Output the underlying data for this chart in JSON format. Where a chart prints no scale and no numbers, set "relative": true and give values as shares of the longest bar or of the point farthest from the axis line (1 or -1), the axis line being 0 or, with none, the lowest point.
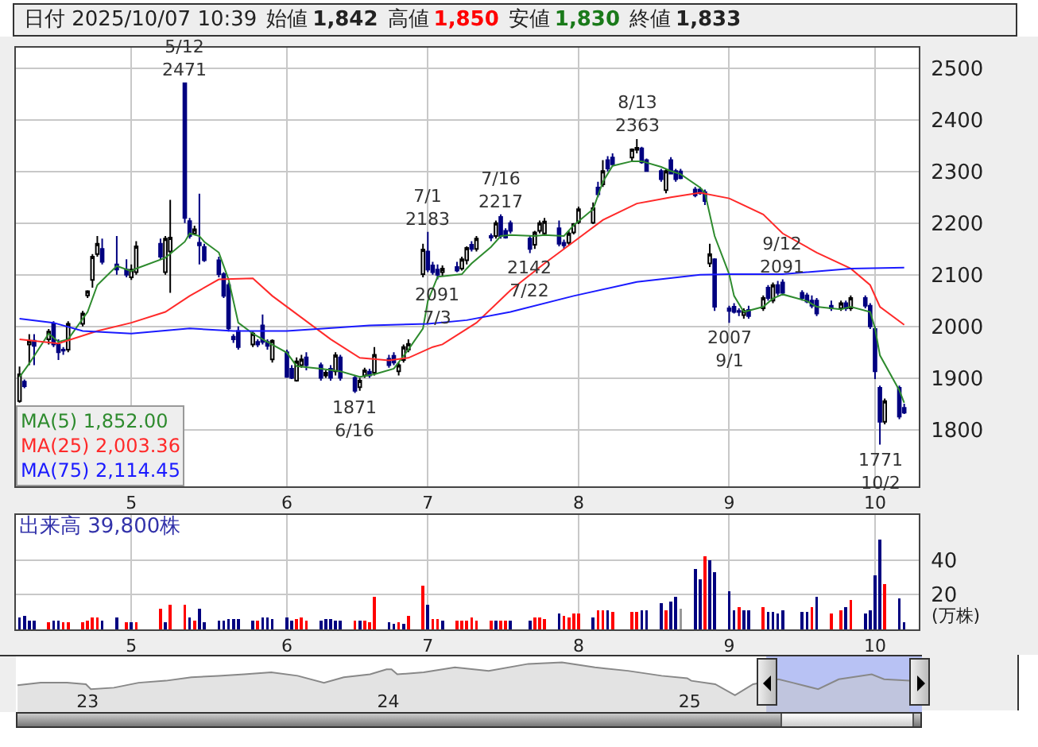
{
  "chart_data": [
    {
      "type": "candlestick",
      "title": "日付 2025/10/07 10:39",
      "x": [
        "2025-04-08",
        "2025-04-09",
        "2025-04-10",
        "2025-04-11",
        "2025-04-14",
        "2025-04-15",
        "2025-04-16",
        "2025-04-17",
        "2025-04-18",
        "2025-04-21",
        "2025-04-22",
        "2025-04-23",
        "2025-04-24",
        "2025-04-25",
        "2025-04-28",
        "2025-04-30",
        "2025-05-01",
        "2025-05-02",
        "2025-05-07",
        "2025-05-08",
        "2025-05-09",
        "2025-05-12",
        "2025-05-13",
        "2025-05-14",
        "2025-05-15",
        "2025-05-16",
        "2025-05-19",
        "2025-05-20",
        "2025-05-21",
        "2025-05-22",
        "2025-05-23",
        "2025-05-26",
        "2025-05-27",
        "2025-05-28",
        "2025-05-29",
        "2025-05-30",
        "2025-06-02",
        "2025-06-03",
        "2025-06-04",
        "2025-06-05",
        "2025-06-06",
        "2025-06-09",
        "2025-06-10",
        "2025-06-11",
        "2025-06-12",
        "2025-06-13",
        "2025-06-16",
        "2025-06-17",
        "2025-06-18",
        "2025-06-19",
        "2025-06-20",
        "2025-06-23",
        "2025-06-24",
        "2025-06-25",
        "2025-06-26",
        "2025-06-27",
        "2025-06-30",
        "2025-07-01",
        "2025-07-02",
        "2025-07-03",
        "2025-07-04",
        "2025-07-07",
        "2025-07-08",
        "2025-07-09",
        "2025-07-10",
        "2025-07-11",
        "2025-07-14",
        "2025-07-15",
        "2025-07-16",
        "2025-07-17",
        "2025-07-18",
        "2025-07-22",
        "2025-07-23",
        "2025-07-24",
        "2025-07-25",
        "2025-07-28",
        "2025-07-29",
        "2025-07-30",
        "2025-07-31",
        "2025-08-01",
        "2025-08-04",
        "2025-08-05",
        "2025-08-06",
        "2025-08-07",
        "2025-08-08",
        "2025-08-12",
        "2025-08-13",
        "2025-08-14",
        "2025-08-15",
        "2025-08-18",
        "2025-08-19",
        "2025-08-20",
        "2025-08-21",
        "2025-08-22",
        "2025-08-25",
        "2025-08-26",
        "2025-08-27",
        "2025-08-28",
        "2025-08-29",
        "2025-09-01",
        "2025-09-02",
        "2025-09-03",
        "2025-09-04",
        "2025-09-05",
        "2025-09-08",
        "2025-09-09",
        "2025-09-10",
        "2025-09-11",
        "2025-09-12",
        "2025-09-16",
        "2025-09-17",
        "2025-09-18",
        "2025-09-19",
        "2025-09-22",
        "2025-09-24",
        "2025-09-25",
        "2025-09-26",
        "2025-09-29",
        "2025-09-30",
        "2025-10-01",
        "2025-10-02",
        "2025-10-03",
        "2025-10-06",
        "2025-10-07"
      ],
      "ohlc": [
        [
          1855,
          1922,
          1852,
          1907
        ],
        [
          1893,
          1897,
          1880,
          1884
        ],
        [
          1965,
          1985,
          1925,
          1972
        ],
        [
          1972,
          1985,
          1925,
          1962
        ],
        [
          1975,
          1995,
          1965,
          1990
        ],
        [
          2005,
          2010,
          1960,
          1965
        ],
        [
          1965,
          1975,
          1935,
          1950
        ],
        [
          1955,
          1960,
          1945,
          1953
        ],
        [
          1955,
          2010,
          1950,
          2005
        ],
        [
          2005,
          2030,
          2000,
          2025
        ],
        [
          2060,
          2070,
          2055,
          2068
        ],
        [
          2090,
          2140,
          2075,
          2135
        ],
        [
          2140,
          2175,
          2135,
          2160
        ],
        [
          2150,
          2170,
          2120,
          2125
        ],
        [
          2120,
          2175,
          2100,
          2110
        ],
        [
          2110,
          2130,
          2095,
          2100
        ],
        [
          2095,
          2120,
          2090,
          2110
        ],
        [
          2105,
          2165,
          2100,
          2155
        ],
        [
          2160,
          2170,
          2130,
          2135
        ],
        [
          2105,
          2175,
          2100,
          2170
        ],
        [
          2145,
          2245,
          2065,
          2172
        ],
        [
          2471,
          2471,
          2200,
          2210
        ],
        [
          2204,
          2210,
          2170,
          2175
        ],
        [
          2180,
          2195,
          2178,
          2188
        ],
        [
          2162,
          2257,
          2120,
          2157
        ],
        [
          2154,
          2160,
          2125,
          2128
        ],
        [
          2128,
          2135,
          2095,
          2101
        ],
        [
          2101,
          2105,
          2055,
          2059
        ],
        [
          2080,
          2085,
          1990,
          1996
        ],
        [
          1980,
          1985,
          1968,
          1975
        ],
        [
          1991,
          2000,
          1955,
          1960
        ],
        [
          1965,
          1990,
          1960,
          1986
        ],
        [
          1970,
          1975,
          1960,
          1965
        ],
        [
          2002,
          2023,
          1965,
          1970
        ],
        [
          1970,
          1975,
          1955,
          1962
        ],
        [
          1936,
          1975,
          1930,
          1972
        ],
        [
          1950,
          1955,
          1900,
          1902
        ],
        [
          1918,
          1925,
          1898,
          1900
        ],
        [
          1895,
          1940,
          1893,
          1932
        ],
        [
          1925,
          1945,
          1920,
          1936
        ],
        [
          1940,
          1950,
          1915,
          1925
        ],
        [
          1925,
          1930,
          1895,
          1900
        ],
        [
          1905,
          1915,
          1900,
          1910
        ],
        [
          1918,
          1925,
          1895,
          1900
        ],
        [
          1913,
          1950,
          1905,
          1944
        ],
        [
          1940,
          1945,
          1895,
          1900
        ],
        [
          1900,
          1905,
          1871,
          1875
        ],
        [
          1882,
          1900,
          1875,
          1895
        ],
        [
          1905,
          1920,
          1900,
          1915
        ],
        [
          1912,
          1918,
          1900,
          1905
        ],
        [
          1910,
          1960,
          1905,
          1945
        ],
        [
          1937,
          1945,
          1920,
          1925
        ],
        [
          1943,
          1950,
          1925,
          1930
        ],
        [
          1913,
          1930,
          1905,
          1925
        ],
        [
          1935,
          1965,
          1930,
          1960
        ],
        [
          1955,
          1975,
          1950,
          1966
        ],
        [
          2101,
          2160,
          2095,
          2149
        ],
        [
          2145,
          2183,
          2105,
          2110
        ],
        [
          2118,
          2125,
          2100,
          2105
        ],
        [
          2110,
          2120,
          2091,
          2100
        ],
        [
          2105,
          2118,
          2098,
          2112
        ],
        [
          2115,
          2125,
          2105,
          2108
        ],
        [
          2112,
          2135,
          2108,
          2130
        ],
        [
          2128,
          2155,
          2120,
          2152
        ],
        [
          2158,
          2165,
          2145,
          2150
        ],
        [
          2150,
          2175,
          2145,
          2170
        ],
        [
          2175,
          2180,
          2165,
          2172
        ],
        [
          2175,
          2205,
          2170,
          2200
        ],
        [
          2212,
          2217,
          2170,
          2175
        ],
        [
          2185,
          2190,
          2170,
          2172
        ],
        [
          2200,
          2205,
          2180,
          2185
        ],
        [
          2170,
          2175,
          2142,
          2150
        ],
        [
          2158,
          2185,
          2150,
          2182
        ],
        [
          2185,
          2205,
          2180,
          2200
        ],
        [
          2180,
          2210,
          2175,
          2203
        ],
        [
          2190,
          2205,
          2155,
          2160
        ],
        [
          2162,
          2168,
          2150,
          2157
        ],
        [
          2162,
          2185,
          2158,
          2180
        ],
        [
          2182,
          2200,
          2178,
          2198
        ],
        [
          2202,
          2232,
          2198,
          2227
        ],
        [
          2201,
          2240,
          2198,
          2229
        ],
        [
          2269,
          2280,
          2250,
          2256
        ],
        [
          2275,
          2322,
          2270,
          2301
        ],
        [
          2322,
          2330,
          2300,
          2306
        ],
        [
          2327,
          2335,
          2310,
          2314
        ],
        [
          2327,
          2345,
          2320,
          2343
        ],
        [
          2342,
          2363,
          2335,
          2346
        ],
        [
          2345,
          2348,
          2315,
          2318
        ],
        [
          2322,
          2325,
          2300,
          2301
        ],
        [
          2301,
          2305,
          2280,
          2285
        ],
        [
          2264,
          2305,
          2258,
          2301
        ],
        [
          2322,
          2328,
          2295,
          2296
        ],
        [
          2301,
          2305,
          2280,
          2285
        ],
        [
          2300,
          2305,
          2285,
          2287
        ],
        [
          2265,
          2270,
          2250,
          2254
        ],
        [
          2265,
          2270,
          2255,
          2258
        ],
        [
          2260,
          2265,
          2235,
          2243
        ],
        [
          2122,
          2160,
          2115,
          2140
        ],
        [
          2130,
          2132,
          2030,
          2038
        ],
        [
          2035,
          2040,
          2007,
          2030
        ],
        [
          2038,
          2045,
          2025,
          2028
        ],
        [
          2030,
          2035,
          2020,
          2028
        ],
        [
          2022,
          2035,
          2015,
          2030
        ],
        [
          2032,
          2040,
          2015,
          2020
        ],
        [
          2035,
          2060,
          2030,
          2055
        ],
        [
          2075,
          2080,
          2050,
          2055
        ],
        [
          2050,
          2085,
          2045,
          2080
        ],
        [
          2080,
          2088,
          2060,
          2065
        ],
        [
          2085,
          2091,
          2060,
          2065
        ],
        [
          2065,
          2070,
          2050,
          2055
        ],
        [
          2060,
          2065,
          2045,
          2048
        ],
        [
          2050,
          2060,
          2035,
          2040
        ],
        [
          2050,
          2055,
          2020,
          2025
        ],
        [
          2040,
          2050,
          2030,
          2035
        ],
        [
          2035,
          2050,
          2030,
          2045
        ],
        [
          2045,
          2050,
          2030,
          2035
        ],
        [
          2035,
          2060,
          2030,
          2055
        ],
        [
          2055,
          2060,
          2035,
          2040
        ],
        [
          2040,
          2045,
          1995,
          2000
        ],
        [
          1995,
          2000,
          1898,
          1913
        ],
        [
          1881,
          1885,
          1771,
          1815
        ],
        [
          1815,
          1860,
          1810,
          1855
        ],
        [
          1881,
          1885,
          1820,
          1825
        ],
        [
          1842,
          1850,
          1830,
          1833
        ]
      ],
      "series": [
        {
          "type": "line",
          "name": "MA(5) 1,852.00",
          "color": "#2e8b2e",
          "x": [
            "2025-04-08",
            "2025-04-10",
            "2025-04-14",
            "2025-04-16",
            "2025-04-18",
            "2025-04-22",
            "2025-04-24",
            "2025-04-28",
            "2025-05-01",
            "2025-05-02",
            "2025-05-08",
            "2025-05-12",
            "2025-05-13",
            "2025-05-15",
            "2025-05-16",
            "2025-05-19",
            "2025-05-21",
            "2025-05-23",
            "2025-05-26",
            "2025-05-28",
            "2025-06-02",
            "2025-06-04",
            "2025-06-09",
            "2025-06-13",
            "2025-06-17",
            "2025-06-20",
            "2025-06-24",
            "2025-06-27",
            "2025-06-30",
            "2025-07-01",
            "2025-07-03",
            "2025-07-08",
            "2025-07-09",
            "2025-07-10",
            "2025-07-14",
            "2025-07-16",
            "2025-07-18",
            "2025-07-23",
            "2025-07-25",
            "2025-07-29",
            "2025-07-31",
            "2025-08-04",
            "2025-08-06",
            "2025-08-08",
            "2025-08-12",
            "2025-08-14",
            "2025-08-18",
            "2025-08-20",
            "2025-08-22",
            "2025-08-26",
            "2025-08-27",
            "2025-08-29",
            "2025-09-01",
            "2025-09-02",
            "2025-09-04",
            "2025-09-08",
            "2025-09-10",
            "2025-09-12",
            "2025-09-17",
            "2025-09-19",
            "2025-09-24",
            "2025-09-26",
            "2025-09-30",
            "2025-10-01",
            "2025-10-02",
            "2025-10-06",
            "2025-10-07"
          ],
          "values": [
            1902,
            1928,
            1986,
            1970,
            1975,
            2028,
            2080,
            2117,
            2107,
            2112,
            2133,
            2164,
            2180,
            2175,
            2164,
            2143,
            2091,
            2007,
            1986,
            1975,
            1949,
            1923,
            1918,
            1913,
            1902,
            1907,
            1918,
            1955,
            1996,
            2049,
            2096,
            2101,
            2112,
            2122,
            2154,
            2175,
            2177,
            2175,
            2177,
            2175,
            2196,
            2227,
            2280,
            2311,
            2320,
            2320,
            2309,
            2301,
            2295,
            2269,
            2259,
            2175,
            2101,
            2059,
            2028,
            2038,
            2054,
            2062,
            2049,
            2038,
            2033,
            2038,
            2028,
            1996,
            1944,
            1876,
            1852
          ]
        },
        {
          "type": "line",
          "name": "MA(25) 2,003.36",
          "color": "#ff2a2a",
          "x": [
            "2025-04-08",
            "2025-04-16",
            "2025-04-24",
            "2025-05-01",
            "2025-05-08",
            "2025-05-13",
            "2025-05-19",
            "2025-05-26",
            "2025-05-30",
            "2025-06-05",
            "2025-06-11",
            "2025-06-17",
            "2025-06-23",
            "2025-06-27",
            "2025-07-02",
            "2025-07-04",
            "2025-07-11",
            "2025-07-18",
            "2025-07-25",
            "2025-07-31",
            "2025-08-06",
            "2025-08-13",
            "2025-08-20",
            "2025-08-26",
            "2025-09-01",
            "2025-09-08",
            "2025-09-12",
            "2025-09-19",
            "2025-09-26",
            "2025-09-30",
            "2025-10-02",
            "2025-10-07"
          ],
          "values": [
            1975,
            1967,
            1991,
            2007,
            2028,
            2059,
            2091,
            2093,
            2059,
            2017,
            1975,
            1939,
            1934,
            1939,
            1960,
            1965,
            2007,
            2070,
            2122,
            2164,
            2206,
            2238,
            2250,
            2259,
            2248,
            2217,
            2180,
            2143,
            2112,
            2080,
            2038,
            2003
          ]
        },
        {
          "type": "line",
          "name": "MA(75) 2,114.45",
          "color": "#1a1aff",
          "x": [
            "2025-04-08",
            "2025-04-15",
            "2025-04-21",
            "2025-05-01",
            "2025-05-13",
            "2025-05-22",
            "2025-06-02",
            "2025-06-10",
            "2025-06-19",
            "2025-07-01",
            "2025-07-09",
            "2025-07-18",
            "2025-07-31",
            "2025-08-13",
            "2025-08-26",
            "2025-09-01",
            "2025-09-12",
            "2025-09-26",
            "2025-10-07"
          ],
          "values": [
            2015,
            2007,
            1991,
            1986,
            1996,
            1991,
            1991,
            1996,
            2002,
            2005,
            2012,
            2028,
            2059,
            2086,
            2100,
            2101,
            2101,
            2112,
            2114
          ]
        }
      ],
      "annotations": [
        "始値 1,842",
        "高値 1,850",
        "安値 1,830",
        "終値 1,833",
        {
          "text": "5/12\n2471",
          "x": "2025-05-12",
          "y": 2471
        },
        {
          "text": "1871\n6/16",
          "x": "2025-06-16",
          "y": 1871
        },
        {
          "text": "7/1\n2183",
          "x": "2025-07-01",
          "y": 2183
        },
        {
          "text": "2091\n7/3",
          "x": "2025-07-03",
          "y": 2091
        },
        {
          "text": "7/16\n2217",
          "x": "2025-07-16",
          "y": 2217
        },
        {
          "text": "2142\n7/22",
          "x": "2025-07-22",
          "y": 2142
        },
        {
          "text": "8/13\n2363",
          "x": "2025-08-13",
          "y": 2363
        },
        {
          "text": "2007\n9/1",
          "x": "2025-09-01",
          "y": 2007
        },
        {
          "text": "9/12\n2091",
          "x": "2025-09-12",
          "y": 2091
        },
        {
          "text": "1771\n10/2",
          "x": "2025-10-02",
          "y": 1771
        }
      ],
      "xlim": [
        "2025-04-07T06:00",
        "2025-10-10"
      ],
      "xticks": [
        {
          "value": "2025-05-01",
          "label": "5"
        },
        {
          "value": "2025-06-02",
          "label": "6"
        },
        {
          "value": "2025-07-01",
          "label": "7"
        },
        {
          "value": "2025-08-01",
          "label": "8"
        },
        {
          "value": "2025-09-01",
          "label": "9"
        },
        {
          "value": "2025-10-01",
          "label": "10"
        }
      ],
      "ylim": [
        1690,
        2540
      ],
      "yticks": [
        1800,
        1900,
        2000,
        2100,
        2200,
        2300,
        2400,
        2500
      ],
      "grid": true,
      "legend": "bottom left"
    },
    {
      "type": "bar",
      "title": "出来高 39,800株",
      "ylabel": "(万株)",
      "x": [
        "2025-04-08",
        "2025-04-09",
        "2025-04-10",
        "2025-04-11",
        "2025-04-14",
        "2025-04-15",
        "2025-04-16",
        "2025-04-17",
        "2025-04-18",
        "2025-04-21",
        "2025-04-22",
        "2025-04-23",
        "2025-04-24",
        "2025-04-25",
        "2025-04-28",
        "2025-04-30",
        "2025-05-01",
        "2025-05-02",
        "2025-05-07",
        "2025-05-08",
        "2025-05-09",
        "2025-05-12",
        "2025-05-13",
        "2025-05-14",
        "2025-05-15",
        "2025-05-16",
        "2025-05-19",
        "2025-05-20",
        "2025-05-21",
        "2025-05-22",
        "2025-05-23",
        "2025-05-26",
        "2025-05-27",
        "2025-05-28",
        "2025-05-29",
        "2025-05-30",
        "2025-06-02",
        "2025-06-03",
        "2025-06-04",
        "2025-06-05",
        "2025-06-06",
        "2025-06-09",
        "2025-06-10",
        "2025-06-11",
        "2025-06-12",
        "2025-06-13",
        "2025-06-16",
        "2025-06-17",
        "2025-06-18",
        "2025-06-19",
        "2025-06-20",
        "2025-06-23",
        "2025-06-24",
        "2025-06-25",
        "2025-06-26",
        "2025-06-27",
        "2025-06-30",
        "2025-07-01",
        "2025-07-02",
        "2025-07-03",
        "2025-07-04",
        "2025-07-07",
        "2025-07-08",
        "2025-07-09",
        "2025-07-10",
        "2025-07-11",
        "2025-07-14",
        "2025-07-15",
        "2025-07-16",
        "2025-07-17",
        "2025-07-18",
        "2025-07-22",
        "2025-07-23",
        "2025-07-24",
        "2025-07-25",
        "2025-07-28",
        "2025-07-29",
        "2025-07-30",
        "2025-07-31",
        "2025-08-01",
        "2025-08-04",
        "2025-08-05",
        "2025-08-06",
        "2025-08-07",
        "2025-08-08",
        "2025-08-12",
        "2025-08-13",
        "2025-08-14",
        "2025-08-15",
        "2025-08-18",
        "2025-08-19",
        "2025-08-20",
        "2025-08-21",
        "2025-08-22",
        "2025-08-25",
        "2025-08-26",
        "2025-08-27",
        "2025-08-28",
        "2025-08-29",
        "2025-09-01",
        "2025-09-02",
        "2025-09-03",
        "2025-09-04",
        "2025-09-05",
        "2025-09-08",
        "2025-09-09",
        "2025-09-10",
        "2025-09-11",
        "2025-09-12",
        "2025-09-16",
        "2025-09-17",
        "2025-09-18",
        "2025-09-19",
        "2025-09-22",
        "2025-09-24",
        "2025-09-25",
        "2025-09-26",
        "2025-09-29",
        "2025-09-30",
        "2025-10-01",
        "2025-10-02",
        "2025-10-03",
        "2025-10-06",
        "2025-10-07"
      ],
      "values": [
        7,
        8,
        5,
        5,
        4,
        5,
        5,
        4,
        4,
        4,
        5,
        7,
        7,
        5,
        7,
        4,
        4,
        4,
        12,
        4,
        14,
        14,
        7,
        5,
        12,
        4,
        5,
        5,
        6,
        6,
        6,
        5,
        5,
        7,
        7,
        6,
        7,
        5,
        6,
        7,
        5,
        5,
        6,
        6,
        5,
        5,
        5,
        5,
        5,
        4,
        19,
        4,
        3,
        4,
        3,
        8,
        25,
        14,
        6,
        6,
        5,
        5,
        5,
        5,
        7,
        5,
        5,
        5,
        5,
        5,
        5,
        5,
        7,
        7,
        6,
        9,
        8,
        7,
        9,
        9,
        7,
        11,
        11,
        11,
        10,
        10,
        10,
        11,
        11,
        15,
        11,
        16,
        19,
        12,
        35,
        29,
        42,
        40,
        33,
        22,
        11,
        13,
        11,
        11,
        13,
        10,
        10,
        9,
        11,
        10,
        10,
        13,
        19,
        9,
        11,
        13,
        17,
        9,
        11,
        31,
        52,
        26,
        18,
        4
      ],
      "colors": [
        "#000080",
        "#000080",
        "#000080",
        "#000080",
        "#ff0000",
        "#000080",
        "#000080",
        "#ff0000",
        "#ff0000",
        "#ff0000",
        "#ff0000",
        "#ff0000",
        "#ff0000",
        "#000080",
        "#000080",
        "#ff0000",
        "#000080",
        "#ff0000",
        "#ff0000",
        "#000080",
        "#ff0000",
        "#ff0000",
        "#000080",
        "#ff0000",
        "#000080",
        "#000080",
        "#000080",
        "#000080",
        "#000080",
        "#000080",
        "#000080",
        "#000080",
        "#ff0000",
        "#000080",
        "#000080",
        "#000080",
        "#000080",
        "#000080",
        "#ff0000",
        "#ff0000",
        "#ff0000",
        "#000080",
        "#000080",
        "#000080",
        "#000080",
        "#000080",
        "#ff0000",
        "#000080",
        "#ff0000",
        "#ff0000",
        "#ff0000",
        "#000080",
        "#000080",
        "#ff0000",
        "#000080",
        "#ff0000",
        "#ff0000",
        "#000080",
        "#ff0000",
        "#ff0000",
        "#000080",
        "#ff0000",
        "#ff0000",
        "#ff0000",
        "#ff0000",
        "#ff0000",
        "#ff0000",
        "#000080",
        "#ff0000",
        "#ff0000",
        "#000080",
        "#000080",
        "#ff0000",
        "#ff0000",
        "#ff0000",
        "#000080",
        "#ff0000",
        "#ff0000",
        "#ff0000",
        "#ff0000",
        "#000080",
        "#ff0000",
        "#ff0000",
        "#000080",
        "#ff0000",
        "#ff0000",
        "#ff0000",
        "#000080",
        "#000080",
        "#000080",
        "#ff0000",
        "#000080",
        "#000080",
        "#999999",
        "#000080",
        "#000080",
        "#ff0000",
        "#000080",
        "#000080",
        "#000080",
        "#000080",
        "#ff0000",
        "#000080",
        "#000080",
        "#ff0000",
        "#000080",
        "#000080",
        "#000080",
        "#000080",
        "#000080",
        "#000080",
        "#ff0000",
        "#000080",
        "#ff0000",
        "#ff0000",
        "#000080",
        "#ff0000",
        "#000080",
        "#000080",
        "#000080",
        "#000080",
        "#ff0000",
        "#000080",
        "#000080"
      ],
      "xlim": [
        "2025-04-07T06:00",
        "2025-10-10"
      ],
      "xticks": [
        {
          "value": "2025-05-01",
          "label": "5"
        },
        {
          "value": "2025-06-02",
          "label": "6"
        },
        {
          "value": "2025-07-01",
          "label": "7"
        },
        {
          "value": "2025-08-01",
          "label": "8"
        },
        {
          "value": "2025-09-01",
          "label": "9"
        },
        {
          "value": "2025-10-01",
          "label": "10"
        }
      ],
      "ylim": [
        0,
        66
      ],
      "yticks": [
        20,
        40
      ],
      "grid": true
    },
    {
      "type": "area",
      "relative": true,
      "color": "#888888",
      "x": [
        "2022-10-08",
        "2022-11-05",
        "2022-12-07",
        "2022-12-30",
        "2023-01-05",
        "2023-02-02",
        "2023-03-04",
        "2023-04-06",
        "2023-05-07",
        "2023-06-09",
        "2023-07-10",
        "2023-08-12",
        "2023-09-13",
        "2023-10-15",
        "2023-11-08",
        "2023-12-10",
        "2023-12-30",
        "2024-01-05",
        "2024-01-12",
        "2024-02-13",
        "2024-03-22",
        "2024-05-02",
        "2024-06-19",
        "2024-07-30",
        "2024-09-08",
        "2024-10-18",
        "2024-11-28",
        "2024-12-29",
        "2025-01-03",
        "2025-02-01",
        "2025-02-25",
        "2025-03-19",
        "2025-04-19",
        "2025-05-06",
        "2025-06-06",
        "2025-07-01",
        "2025-08-10",
        "2025-08-25",
        "2025-09-25"
      ],
      "values": [
        0.54,
        0.59,
        0.59,
        0.56,
        0.46,
        0.49,
        0.59,
        0.63,
        0.7,
        0.73,
        0.76,
        0.8,
        0.73,
        0.59,
        0.7,
        0.76,
        0.86,
        0.86,
        0.76,
        0.8,
        0.9,
        0.83,
        0.97,
        1,
        0.9,
        0.83,
        0.73,
        0.68,
        0.63,
        0.56,
        0.34,
        0.56,
        0.66,
        0.59,
        0.46,
        0.66,
        0.76,
        0.66,
        0.63
      ],
      "xlim": [
        "2022-10-06",
        "2025-10-10"
      ],
      "xticks": [
        {
          "value": "2023-01-01",
          "label": "23"
        },
        {
          "value": "2024-01-01",
          "label": "24"
        },
        {
          "value": "2025-01-01",
          "label": "25"
        }
      ],
      "bands": [
        {
          "axis": "x",
          "from": "2025-04-04",
          "to": "2025-10-10",
          "color": "#b8c2f4"
        }
      ],
      "tick_labels": "x"
    }
  ]
}
